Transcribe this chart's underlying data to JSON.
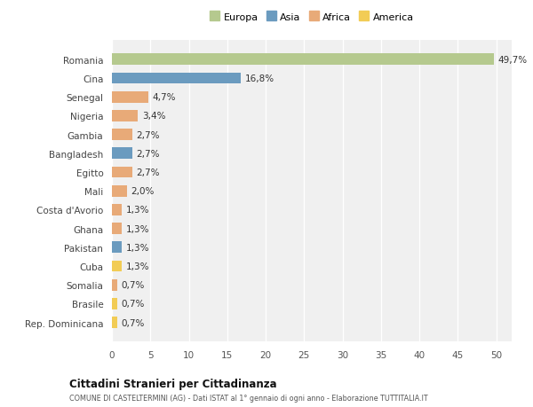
{
  "countries": [
    "Romania",
    "Cina",
    "Senegal",
    "Nigeria",
    "Gambia",
    "Bangladesh",
    "Egitto",
    "Mali",
    "Costa d'Avorio",
    "Ghana",
    "Pakistan",
    "Cuba",
    "Somalia",
    "Brasile",
    "Rep. Dominicana"
  ],
  "values": [
    49.7,
    16.8,
    4.7,
    3.4,
    2.7,
    2.7,
    2.7,
    2.0,
    1.3,
    1.3,
    1.3,
    1.3,
    0.7,
    0.7,
    0.7
  ],
  "labels": [
    "49,7%",
    "16,8%",
    "4,7%",
    "3,4%",
    "2,7%",
    "2,7%",
    "2,7%",
    "2,0%",
    "1,3%",
    "1,3%",
    "1,3%",
    "1,3%",
    "0,7%",
    "0,7%",
    "0,7%"
  ],
  "continent": [
    "Europa",
    "Asia",
    "Africa",
    "Africa",
    "Africa",
    "Asia",
    "Africa",
    "Africa",
    "Africa",
    "Africa",
    "Asia",
    "America",
    "Africa",
    "America",
    "America"
  ],
  "colors": {
    "Europa": "#b5c98e",
    "Asia": "#6b9bbf",
    "Africa": "#e8aa78",
    "America": "#f2cc55"
  },
  "legend_order": [
    "Europa",
    "Asia",
    "Africa",
    "America"
  ],
  "title": "Cittadini Stranieri per Cittadinanza",
  "subtitle": "COMUNE DI CASTELTERMINI (AG) - Dati ISTAT al 1° gennaio di ogni anno - Elaborazione TUTTITALIA.IT",
  "xlim": [
    0,
    52
  ],
  "xticks": [
    0,
    5,
    10,
    15,
    20,
    25,
    30,
    35,
    40,
    45,
    50
  ],
  "fig_bg": "#ffffff",
  "plot_bg": "#f0f0f0",
  "grid_color": "#ffffff",
  "bar_height": 0.6
}
